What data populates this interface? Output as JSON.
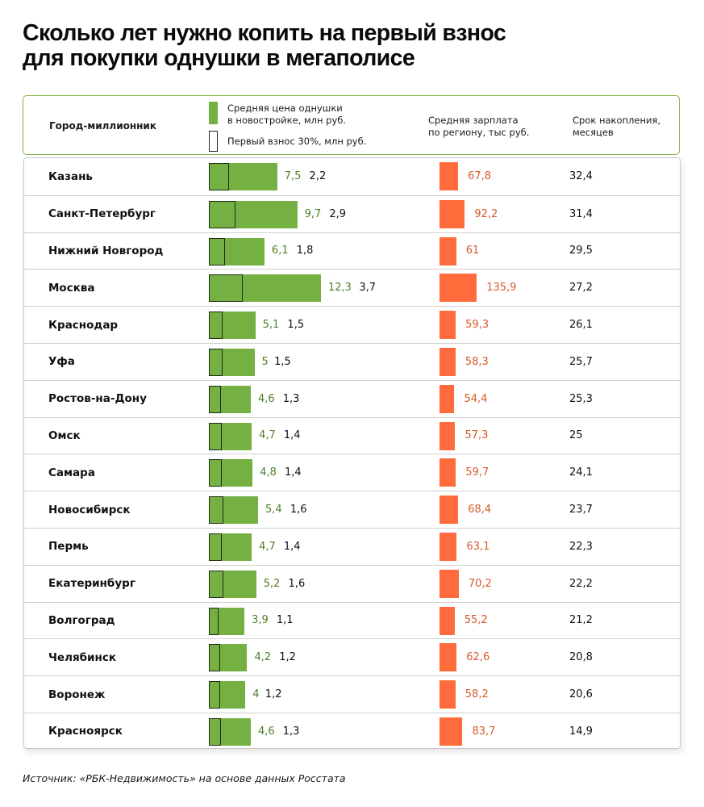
{
  "title": {
    "line1": "Сколько лет нужно копить на первый взнос",
    "line2": "для покупки однушки в мегаполисе"
  },
  "header": {
    "city": "Город-миллионник",
    "legend_price_line1": "Средняя цена однушки",
    "legend_price_line2": "в новостройке, млн руб.",
    "legend_down": "Первый взнос 30%, млн руб.",
    "salary_line1": "Средняя зарплата",
    "salary_line2": "по региону,  тыс руб.",
    "term_line1": "Срок накопления,",
    "term_line2": "месяцев"
  },
  "source": "Источник: «РБК-Недвижимость» на основе данных Росстата",
  "colors": {
    "price": "#75b043",
    "salary": "#ff6b3a",
    "header_border": "#7cb548"
  },
  "chart_data": {
    "type": "table",
    "title": "Сколько лет нужно копить на первый взнос для покупки однушки в мегаполисе",
    "columns": [
      "Город-миллионник",
      "Средняя цена однушки в новостройке, млн руб.",
      "Первый взнос 30%, млн руб.",
      "Средняя зарплата по региону, тыс руб.",
      "Срок накопления, месяцев"
    ],
    "rows": [
      {
        "city": "Казань",
        "price": 7.5,
        "price_label": "7,5",
        "down": 2.2,
        "down_label": "2,2",
        "salary": 67.8,
        "salary_label": "67,8",
        "term": 32.4,
        "term_label": "32,4"
      },
      {
        "city": "Санкт-Петербург",
        "price": 9.7,
        "price_label": "9,7",
        "down": 2.9,
        "down_label": "2,9",
        "salary": 92.2,
        "salary_label": "92,2",
        "term": 31.4,
        "term_label": "31,4"
      },
      {
        "city": "Нижний Новгород",
        "price": 6.1,
        "price_label": "6,1",
        "down": 1.8,
        "down_label": "1,8",
        "salary": 61,
        "salary_label": "61",
        "term": 29.5,
        "term_label": "29,5"
      },
      {
        "city": "Москва",
        "price": 12.3,
        "price_label": "12,3",
        "down": 3.7,
        "down_label": "3,7",
        "salary": 135.9,
        "salary_label": "135,9",
        "term": 27.2,
        "term_label": "27,2"
      },
      {
        "city": "Краснодар",
        "price": 5.1,
        "price_label": "5,1",
        "down": 1.5,
        "down_label": "1,5",
        "salary": 59.3,
        "salary_label": "59,3",
        "term": 26.1,
        "term_label": "26,1"
      },
      {
        "city": "Уфа",
        "price": 5,
        "price_label": "5",
        "down": 1.5,
        "down_label": "1,5",
        "salary": 58.3,
        "salary_label": "58,3",
        "term": 25.7,
        "term_label": "25,7"
      },
      {
        "city": "Ростов-на-Дону",
        "price": 4.6,
        "price_label": "4,6",
        "down": 1.3,
        "down_label": "1,3",
        "salary": 54.4,
        "salary_label": "54,4",
        "term": 25.3,
        "term_label": "25,3"
      },
      {
        "city": "Омск",
        "price": 4.7,
        "price_label": "4,7",
        "down": 1.4,
        "down_label": "1,4",
        "salary": 57.3,
        "salary_label": "57,3",
        "term": 25,
        "term_label": "25"
      },
      {
        "city": "Самара",
        "price": 4.8,
        "price_label": "4,8",
        "down": 1.4,
        "down_label": "1,4",
        "salary": 59.7,
        "salary_label": "59,7",
        "term": 24.1,
        "term_label": "24,1"
      },
      {
        "city": "Новосибирск",
        "price": 5.4,
        "price_label": "5,4",
        "down": 1.6,
        "down_label": "1,6",
        "salary": 68.4,
        "salary_label": "68,4",
        "term": 23.7,
        "term_label": "23,7"
      },
      {
        "city": "Пермь",
        "price": 4.7,
        "price_label": "4,7",
        "down": 1.4,
        "down_label": "1,4",
        "salary": 63.1,
        "salary_label": "63,1",
        "term": 22.3,
        "term_label": "22,3"
      },
      {
        "city": "Екатеринбург",
        "price": 5.2,
        "price_label": "5,2",
        "down": 1.6,
        "down_label": "1,6",
        "salary": 70.2,
        "salary_label": "70,2",
        "term": 22.2,
        "term_label": "22,2"
      },
      {
        "city": "Волгоград",
        "price": 3.9,
        "price_label": "3,9",
        "down": 1.1,
        "down_label": "1,1",
        "salary": 55.2,
        "salary_label": "55,2",
        "term": 21.2,
        "term_label": "21,2"
      },
      {
        "city": "Челябинск",
        "price": 4.2,
        "price_label": "4,2",
        "down": 1.2,
        "down_label": "1,2",
        "salary": 62.6,
        "salary_label": "62,6",
        "term": 20.8,
        "term_label": "20,8"
      },
      {
        "city": "Воронеж",
        "price": 4,
        "price_label": "4",
        "down": 1.2,
        "down_label": "1,2",
        "salary": 58.2,
        "salary_label": "58,2",
        "term": 20.6,
        "term_label": "20,6"
      },
      {
        "city": "Красноярск",
        "price": 4.6,
        "price_label": "4,6",
        "down": 1.3,
        "down_label": "1,3",
        "salary": 83.7,
        "salary_label": "83,7",
        "term": 14.9,
        "term_label": "14,9"
      }
    ]
  }
}
